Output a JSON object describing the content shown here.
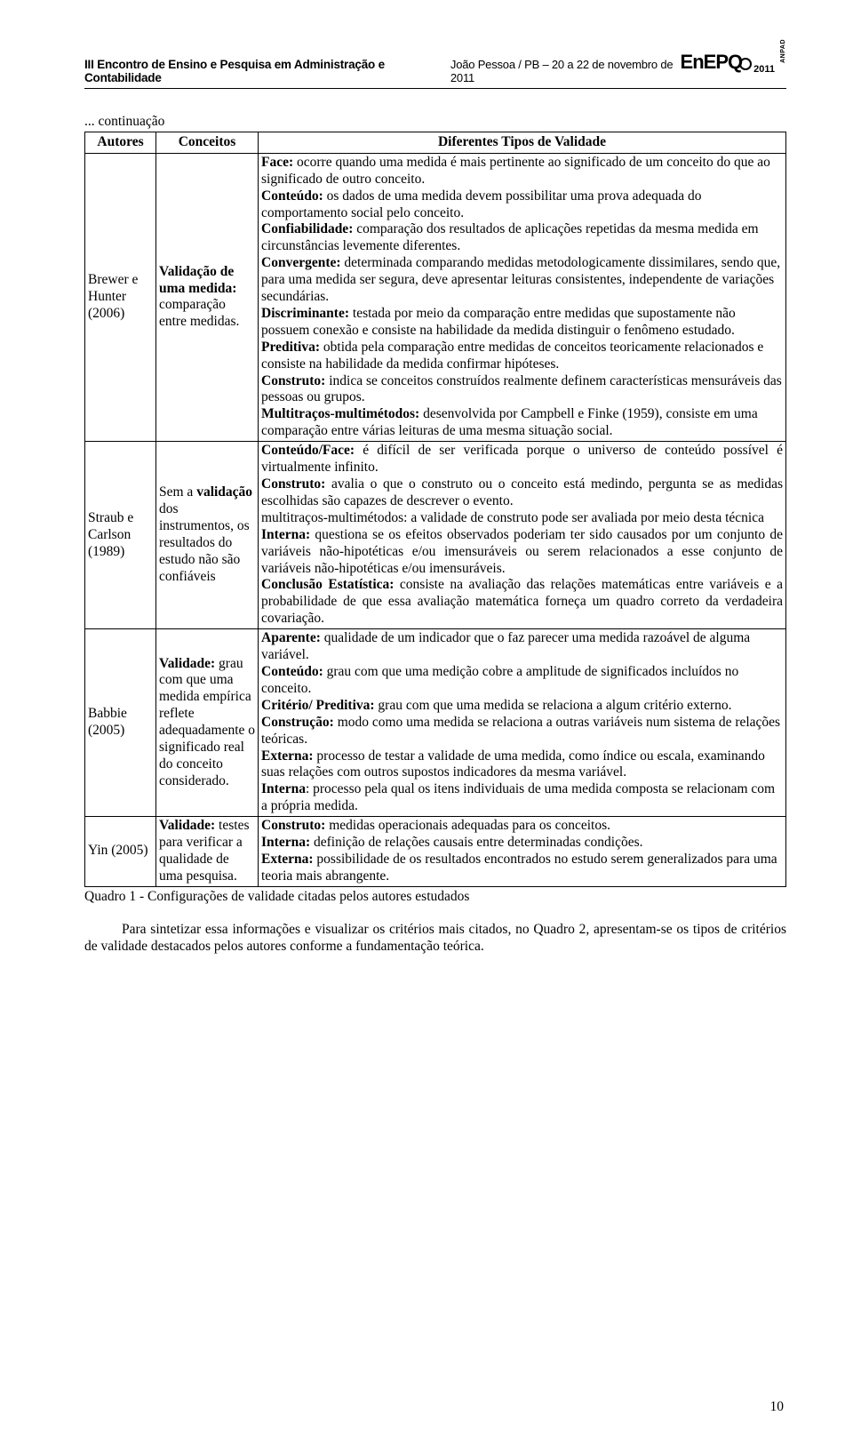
{
  "header": {
    "title": "III Encontro de Ensino e Pesquisa em Administração e Contabilidade",
    "location": "João Pessoa / PB – 20 a 22 de novembro de 2011",
    "logo_en": "En",
    "logo_epq": "EPQ",
    "logo_year": "2011",
    "logo_anpad": "ANPAD"
  },
  "continuation": "... continuação",
  "table": {
    "headers": {
      "autores": "Autores",
      "conceitos": "Conceitos",
      "tipos": "Diferentes Tipos de Validade"
    },
    "rows": [
      {
        "autores": "Brewer e Hunter (2006)",
        "conceitos_prefix": "Validação de uma medida:",
        "conceitos_rest": " comparação entre medidas.",
        "tipos": [
          {
            "b": "Face:",
            "t": " ocorre quando uma medida é mais pertinente ao significado de um conceito do que ao significado de outro conceito."
          },
          {
            "b": "Conteúdo:",
            "t": " os dados de uma medida devem possibilitar uma prova adequada do comportamento social pelo conceito."
          },
          {
            "b": "Confiabilidade:",
            "t": " comparação dos resultados de aplicações repetidas da mesma medida em circunstâncias levemente diferentes."
          },
          {
            "b": "Convergente:",
            "t": " determinada comparando medidas metodologicamente dissimilares, sendo que, para uma medida ser segura, deve apresentar leituras consistentes, independente de variações secundárias."
          },
          {
            "b": "Discriminante:",
            "t": " testada por meio da comparação entre medidas que supostamente não possuem conexão e consiste na habilidade da medida distinguir o fenômeno estudado."
          },
          {
            "b": "Preditiva:",
            "t": " obtida pela comparação entre medidas de conceitos teoricamente relacionados e consiste na habilidade da medida confirmar hipóteses."
          },
          {
            "b": "Construto:",
            "t": " indica se conceitos construídos realmente definem características mensuráveis das pessoas ou grupos."
          },
          {
            "b": "Multitraços-multimétodos:",
            "t": " desenvolvida por Campbell e Finke (1959), consiste em uma comparação entre várias leituras de uma mesma situação social."
          }
        ]
      },
      {
        "autores": "Straub e Carlson (1989)",
        "conceitos_prefix": "",
        "conceitos_rest": "Sem a validação dos instrumentos, os resultados do estudo não são confiáveis",
        "conceitos_bold_word": "validação",
        "tipos": [
          {
            "b": "Conteúdo/Face:",
            "t": " é difícil de ser verificada porque o universo de conteúdo possível é virtualmente infinito.",
            "just": true
          },
          {
            "b": "Construto:",
            "t": " avalia o que o construto ou o conceito está medindo, pergunta se as medidas escolhidas são capazes de descrever o evento.",
            "just": true
          },
          {
            "b": "",
            "t": "multitraços-multimétodos: a validade de construto pode ser avaliada por meio desta técnica",
            "just": true
          },
          {
            "b": "Interna:",
            "t": " questiona se os efeitos observados poderiam ter sido causados por um conjunto de variáveis não-hipotéticas e/ou imensuráveis ou serem relacionados a esse conjunto de variáveis não-hipotéticas e/ou imensuráveis.",
            "just": true
          },
          {
            "b": "Conclusão Estatística:",
            "t": " consiste na avaliação das relações matemáticas entre variáveis e a probabilidade de que essa avaliação matemática forneça um quadro correto da verdadeira covariação."
          }
        ]
      },
      {
        "autores": "Babbie (2005)",
        "conceitos_prefix": "Validade:",
        "conceitos_rest": " grau com que uma medida empírica reflete adequadamente o significado real do conceito considerado.",
        "tipos": [
          {
            "b": "Aparente:",
            "t": " qualidade de um indicador que o faz parecer uma medida razoável de alguma variável."
          },
          {
            "b": "Conteúdo:",
            "t": " grau com que uma medição cobre a amplitude de significados incluídos no conceito."
          },
          {
            "b": "Critério/ Preditiva:",
            "t": " grau com que uma medida se relaciona a algum critério externo."
          },
          {
            "b": "Construção:",
            "t": " modo como uma medida se relaciona a outras variáveis num sistema de relações teóricas."
          },
          {
            "b": "Externa:",
            "t": " processo de testar a validade de uma medida, como índice ou escala, examinando suas relações com outros supostos indicadores da mesma variável."
          },
          {
            "b": "Interna",
            "t": ": processo pela qual os itens individuais de uma medida composta se relacionam com a própria medida."
          }
        ]
      },
      {
        "autores": "Yin (2005)",
        "conceitos_prefix": "Validade:",
        "conceitos_rest": " testes para verificar a qualidade de uma pesquisa.",
        "tipos": [
          {
            "b": "Construto:",
            "t": " medidas operacionais adequadas para os conceitos."
          },
          {
            "b": "Interna:",
            "t": " definição de relações causais entre determinadas condições."
          },
          {
            "b": "Externa:",
            "t": " possibilidade de os resultados encontrados no estudo serem generalizados para uma teoria mais abrangente."
          }
        ]
      }
    ]
  },
  "caption": "Quadro 1 - Configurações de validade citadas pelos autores estudados",
  "paragraph": "Para sintetizar essa informações e visualizar os critérios mais citados, no Quadro 2, apresentam-se os tipos de critérios de validade destacados pelos autores conforme a fundamentação teórica.",
  "page_number": "10"
}
